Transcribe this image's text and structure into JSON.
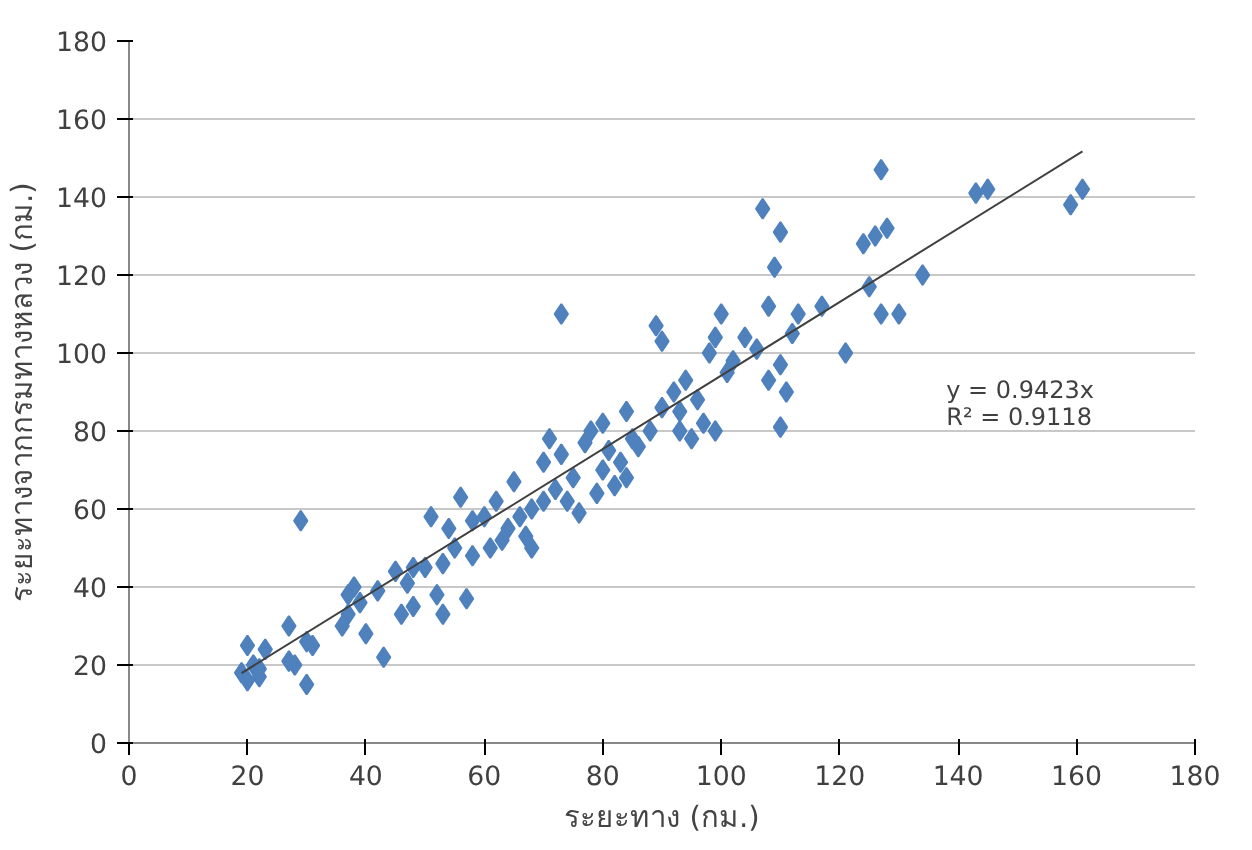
{
  "chart_data": {
    "type": "scatter",
    "xlabel": "ระยะทาง (กม.)",
    "ylabel": "ระยะทางจากกรมทางหลวง (กม.)",
    "xlim": [
      0,
      180
    ],
    "xticks": [
      0,
      20,
      40,
      60,
      80,
      100,
      120,
      140,
      160,
      180
    ],
    "ylim": [
      0,
      180
    ],
    "yticks": [
      0,
      20,
      40,
      60,
      80,
      100,
      120,
      140,
      160,
      180
    ],
    "grid": "y",
    "annotations": [
      "y = 0.9423x",
      "R² = 0.9118"
    ],
    "series": [
      {
        "color": "#4f81bd",
        "marker": "diamond",
        "x": [
          19,
          20,
          20,
          21,
          22,
          23,
          22,
          27,
          27,
          28,
          29,
          30,
          30,
          31,
          36,
          37,
          37,
          38,
          39,
          40,
          42,
          43,
          45,
          46,
          47,
          48,
          48,
          50,
          51,
          52,
          53,
          53,
          54,
          55,
          56,
          57,
          58,
          58,
          60,
          61,
          62,
          63,
          64,
          65,
          66,
          67,
          68,
          68,
          70,
          70,
          71,
          72,
          73,
          73,
          74,
          75,
          76,
          77,
          78,
          79,
          80,
          80,
          81,
          82,
          83,
          84,
          84,
          85,
          86,
          88,
          89,
          90,
          90,
          92,
          93,
          93,
          94,
          95,
          96,
          97,
          98,
          99,
          99,
          100,
          101,
          102,
          104,
          106,
          107,
          108,
          108,
          109,
          110,
          110,
          110,
          111,
          112,
          113,
          117,
          121,
          124,
          125,
          126,
          127,
          127,
          128,
          130,
          134,
          143,
          145,
          159,
          161
        ],
        "values": [
          18,
          25,
          16,
          20,
          17,
          24,
          19,
          21,
          30,
          20,
          57,
          15,
          26,
          25,
          30,
          33,
          38,
          40,
          36,
          28,
          39,
          22,
          44,
          33,
          41,
          45,
          35,
          45,
          58,
          38,
          46,
          33,
          55,
          50,
          63,
          37,
          48,
          57,
          58,
          50,
          62,
          52,
          55,
          67,
          58,
          53,
          50,
          60,
          62,
          72,
          78,
          65,
          74,
          110,
          62,
          68,
          59,
          77,
          80,
          64,
          70,
          82,
          75,
          66,
          72,
          85,
          68,
          78,
          76,
          80,
          107,
          103,
          86,
          90,
          85,
          80,
          93,
          78,
          88,
          82,
          100,
          80,
          104,
          110,
          95,
          98,
          104,
          101,
          137,
          112,
          93,
          122,
          97,
          131,
          81,
          90,
          105,
          110,
          112,
          100,
          128,
          117,
          130,
          147,
          110,
          132,
          110,
          120,
          141,
          142,
          138,
          142
        ]
      },
      {
        "type": "line",
        "color": "#404040",
        "line_style": "solid",
        "marker": "none",
        "x": [
          19,
          161
        ],
        "values": [
          17.9,
          151.7
        ]
      }
    ]
  }
}
